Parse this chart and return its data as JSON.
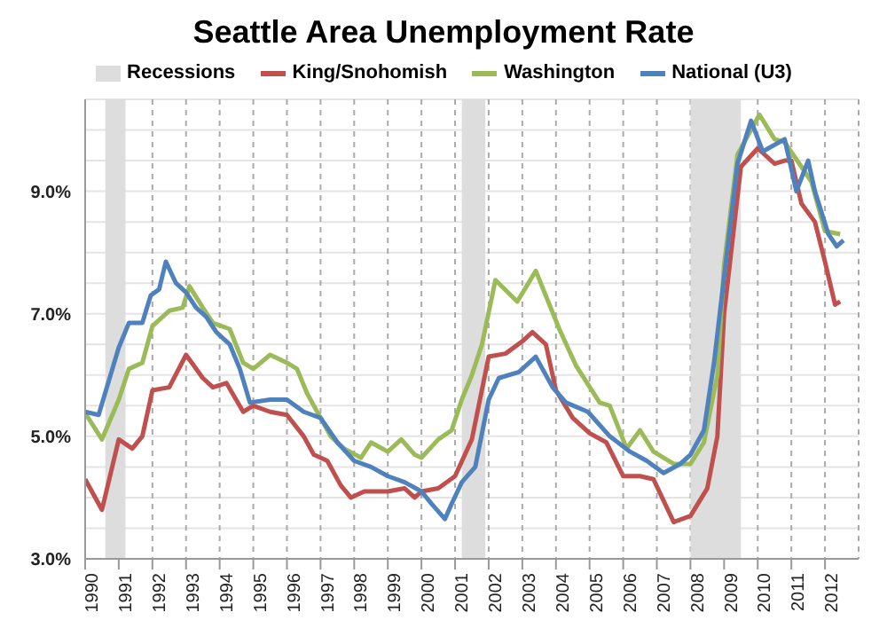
{
  "chart_data": {
    "type": "line",
    "title": "Seattle Area Unemployment Rate",
    "xlim": [
      1990,
      2013
    ],
    "xticks": [
      1990,
      1991,
      1992,
      1993,
      1994,
      1995,
      1996,
      1997,
      1998,
      1999,
      2000,
      2001,
      2002,
      2003,
      2004,
      2005,
      2006,
      2007,
      2008,
      2009,
      2010,
      2011,
      2012
    ],
    "ylim": [
      3,
      10.5
    ],
    "yticks": [
      {
        "value": 3,
        "label": "3.0%"
      },
      {
        "value": 3.5,
        "label": null
      },
      {
        "value": 4,
        "label": null
      },
      {
        "value": 4.5,
        "label": null
      },
      {
        "value": 5,
        "label": "5.0%"
      },
      {
        "value": 5.5,
        "label": null
      },
      {
        "value": 6,
        "label": null
      },
      {
        "value": 6.5,
        "label": null
      },
      {
        "value": 7,
        "label": "7.0%"
      },
      {
        "value": 7.5,
        "label": null
      },
      {
        "value": 8,
        "label": null
      },
      {
        "value": 8.5,
        "label": null
      },
      {
        "value": 9,
        "label": "9.0%"
      },
      {
        "value": 9.5,
        "label": null
      },
      {
        "value": 10,
        "label": null
      },
      {
        "value": 10.5,
        "label": null
      }
    ],
    "grid": true,
    "legend": "top",
    "marker": "none",
    "line_style": "solid",
    "bands": [
      {
        "axis": "x",
        "from": 1990.6,
        "to": 1991.2,
        "label": "Recessions",
        "color": "#dddddd"
      },
      {
        "axis": "x",
        "from": 2001.2,
        "to": 2001.9,
        "color": "#dddddd"
      },
      {
        "axis": "x",
        "from": 2008.0,
        "to": 2009.5,
        "color": "#dddddd"
      }
    ],
    "series": [
      {
        "name": "King/Snohomish",
        "color": "#c0504d",
        "x": [
          1990,
          1990.5,
          1991,
          1991.4,
          1991.7,
          1992,
          1992.5,
          1993,
          1993.5,
          1993.8,
          1994.2,
          1994.7,
          1995,
          1995.5,
          1996,
          1996.5,
          1996.8,
          1997.2,
          1997.6,
          1997.9,
          1998.3,
          1999,
          1999.5,
          1999.8,
          2000,
          2000.5,
          2001,
          2001.5,
          2002,
          2002.5,
          2003,
          2003.3,
          2003.7,
          2004,
          2004.5,
          2005,
          2005.5,
          2006,
          2006.5,
          2006.9,
          2007.2,
          2007.5,
          2008,
          2008.5,
          2008.8,
          2009,
          2009.5,
          2010,
          2010.5,
          2010.8,
          2011,
          2011.3,
          2011.7,
          2012,
          2012.3,
          2012.45
        ],
        "values": [
          4.3,
          3.8,
          4.95,
          4.8,
          5.0,
          5.75,
          5.8,
          6.33,
          5.95,
          5.8,
          5.87,
          5.4,
          5.5,
          5.4,
          5.35,
          5.0,
          4.7,
          4.6,
          4.2,
          4.0,
          4.1,
          4.1,
          4.15,
          4.0,
          4.1,
          4.15,
          4.35,
          4.95,
          6.3,
          6.35,
          6.55,
          6.7,
          6.5,
          5.75,
          5.3,
          5.05,
          4.9,
          4.35,
          4.35,
          4.3,
          3.95,
          3.6,
          3.7,
          4.15,
          5.0,
          7.0,
          9.4,
          9.7,
          9.45,
          9.5,
          9.5,
          8.8,
          8.5,
          7.85,
          7.15,
          7.2
        ]
      },
      {
        "name": "Washington",
        "color": "#9bbb59",
        "x": [
          1990,
          1990.5,
          1991,
          1991.3,
          1991.7,
          1992,
          1992.5,
          1992.9,
          1993.1,
          1993.5,
          1993.8,
          1994.3,
          1994.7,
          1995,
          1995.5,
          1996,
          1996.3,
          1996.6,
          1997,
          1997.3,
          1997.7,
          1998.2,
          1998.5,
          1999,
          1999.4,
          1999.8,
          2000,
          2000.5,
          2000.9,
          2001.2,
          2001.5,
          2001.8,
          2002.2,
          2002.85,
          2003.4,
          2004.1,
          2004.6,
          2005.3,
          2005.6,
          2006.1,
          2006.5,
          2006.9,
          2007.5,
          2008,
          2008.4,
          2008.8,
          2009,
          2009.4,
          2010.05,
          2010.5,
          2010.8,
          2011.3,
          2011.6,
          2012,
          2012.45
        ],
        "values": [
          5.38,
          4.95,
          5.6,
          6.1,
          6.2,
          6.8,
          7.05,
          7.1,
          7.45,
          7.1,
          6.85,
          6.75,
          6.2,
          6.1,
          6.33,
          6.2,
          6.1,
          5.7,
          5.3,
          5.0,
          4.8,
          4.65,
          4.9,
          4.75,
          4.95,
          4.7,
          4.65,
          4.95,
          5.1,
          5.6,
          6.0,
          6.5,
          7.55,
          7.2,
          7.7,
          6.75,
          6.15,
          5.55,
          5.5,
          4.8,
          5.1,
          4.75,
          4.55,
          4.55,
          4.9,
          6.0,
          7.8,
          9.6,
          10.25,
          9.85,
          9.8,
          9.4,
          9.15,
          8.35,
          8.3
        ]
      },
      {
        "name": "National (U3)",
        "color": "#4f81bd",
        "x": [
          1990,
          1990.4,
          1990.7,
          1991,
          1991.3,
          1991.7,
          1991.95,
          1992.2,
          1992.4,
          1992.7,
          1993,
          1993.3,
          1993.6,
          1993.9,
          1994.3,
          1994.6,
          1994.9,
          1995.5,
          1996,
          1996.5,
          1997,
          1997.5,
          1998,
          1998.5,
          1999,
          1999.5,
          2000,
          2000.3,
          2000.7,
          2000.9,
          2001.2,
          2001.6,
          2002,
          2002.3,
          2002.9,
          2003.4,
          2003.9,
          2004.3,
          2004.95,
          2005.6,
          2006.2,
          2006.7,
          2007.2,
          2007.7,
          2008,
          2008.4,
          2008.7,
          2009,
          2009.4,
          2009.8,
          2010.15,
          2010.8,
          2011.15,
          2011.5,
          2011.7,
          2012.1,
          2012.35,
          2012.55
        ],
        "values": [
          5.4,
          5.35,
          5.9,
          6.45,
          6.85,
          6.85,
          7.3,
          7.4,
          7.85,
          7.5,
          7.35,
          7.1,
          6.95,
          6.7,
          6.5,
          6.1,
          5.55,
          5.6,
          5.6,
          5.4,
          5.3,
          4.9,
          4.6,
          4.5,
          4.35,
          4.25,
          4.1,
          3.9,
          3.65,
          3.9,
          4.25,
          4.5,
          5.6,
          5.95,
          6.05,
          6.3,
          5.8,
          5.55,
          5.4,
          5.0,
          4.75,
          4.6,
          4.4,
          4.55,
          4.7,
          5.1,
          6.2,
          7.6,
          9.45,
          10.15,
          9.65,
          9.85,
          9.0,
          9.5,
          9.0,
          8.3,
          8.1,
          8.2
        ]
      }
    ]
  }
}
